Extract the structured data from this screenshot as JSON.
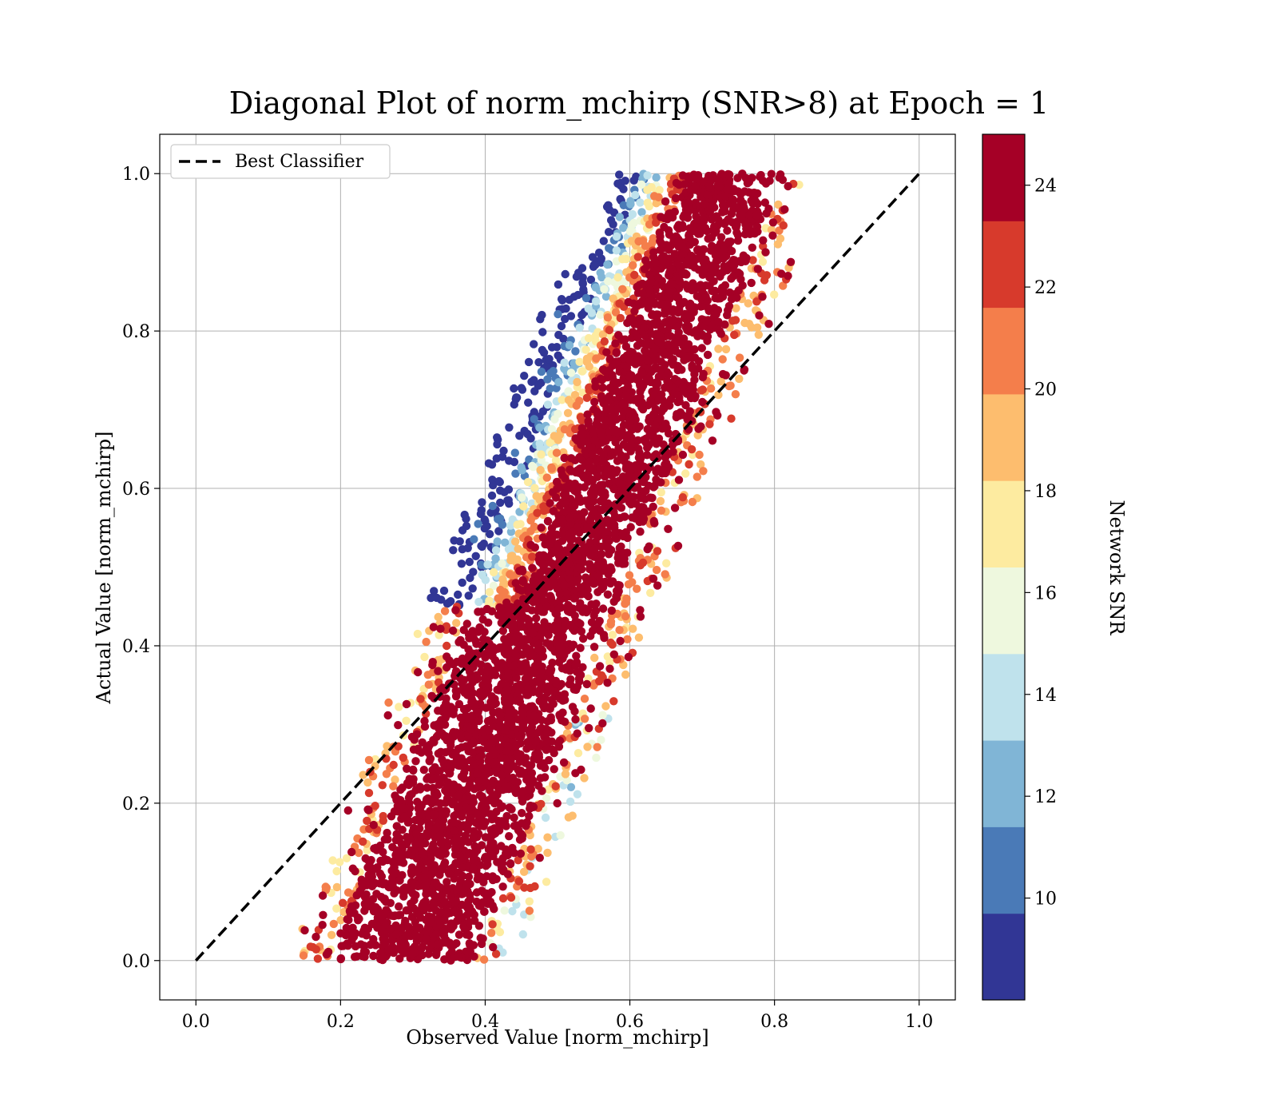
{
  "chart_data": {
    "type": "scatter",
    "title": "Diagonal Plot of norm_mchirp (SNR>8) at Epoch = 1",
    "xlabel": "Observed Value [norm_mchirp]",
    "ylabel": "Actual Value [norm_mchirp]",
    "xlim": [
      -0.05,
      1.05
    ],
    "ylim": [
      -0.05,
      1.05
    ],
    "x_ticks": [
      "0.0",
      "0.2",
      "0.4",
      "0.6",
      "0.8",
      "1.0"
    ],
    "y_ticks": [
      "0.0",
      "0.2",
      "0.4",
      "0.6",
      "0.8",
      "1.0"
    ],
    "grid": true,
    "legend": {
      "placement": "upper-left",
      "entries": [
        "Best Classifier"
      ]
    },
    "reference_line": {
      "name": "Best Classifier",
      "style": "dashed",
      "color": "#000000",
      "points": [
        [
          0.0,
          0.0
        ],
        [
          1.0,
          1.0
        ]
      ]
    },
    "colorbar": {
      "label": "Network SNR",
      "range": [
        8,
        25
      ],
      "ticks": [
        "10",
        "12",
        "14",
        "16",
        "18",
        "20",
        "22",
        "24"
      ],
      "colormap": "RdYlBu_r",
      "colors": [
        "#313695",
        "#4a7ab7",
        "#80b5d6",
        "#bfe2ec",
        "#eef8de",
        "#fdeba0",
        "#fdbd6e",
        "#f47e4b",
        "#d73a2c",
        "#a50026"
      ]
    },
    "point_cloud": {
      "description_x_range": [
        0.12,
        0.83
      ],
      "description_y_range": [
        0.0,
        1.0
      ],
      "snr_high_dominant": 24,
      "snr_low_region": "upper-left edge"
    }
  }
}
